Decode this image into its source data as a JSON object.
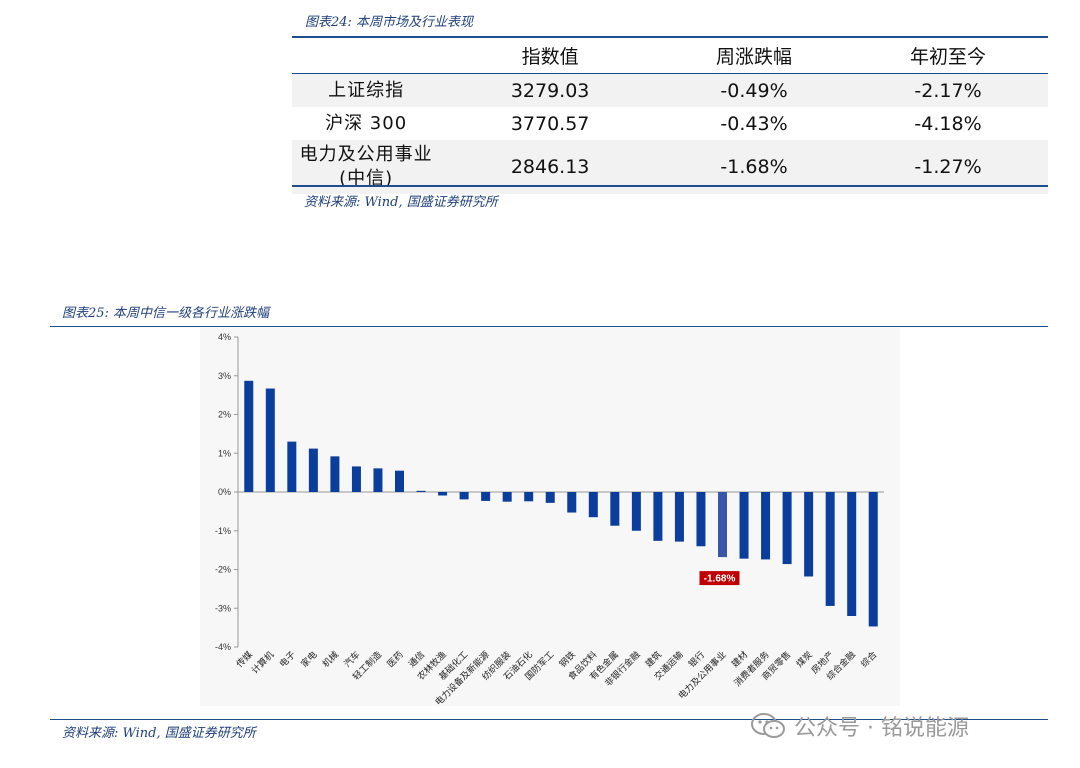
{
  "table24": {
    "caption": "图表24: 本周市场及行业表现",
    "headers": [
      "",
      "指数值",
      "周涨跌幅",
      "年初至今"
    ],
    "rows": [
      {
        "name_line1": "上证综指",
        "name_line2": "",
        "value": "3279.03",
        "week": "-0.49%",
        "ytd": "-2.17%"
      },
      {
        "name_line1": "沪深 300",
        "name_line2": "",
        "value": "3770.57",
        "week": "-0.43%",
        "ytd": "-4.18%"
      },
      {
        "name_line1": "电力及公用事业",
        "name_line2": "(中信)",
        "value": "2846.13",
        "week": "-1.68%",
        "ytd": "-1.27%"
      }
    ],
    "source": "资料来源: Wind, 国盛证券研究所"
  },
  "chart25": {
    "caption": "图表25: 本周中信一级各行业涨跌幅",
    "source": "资料来源: Wind, 国盛证券研究所"
  },
  "chart_data": {
    "type": "bar",
    "title": "",
    "xlabel": "",
    "ylabel": "",
    "ylim": [
      -4,
      4
    ],
    "yticks": [
      "4%",
      "3%",
      "2%",
      "1%",
      "0%",
      "-1%",
      "-2%",
      "-3%",
      "-4%"
    ],
    "categories": [
      "传媒",
      "计算机",
      "电子",
      "家电",
      "机械",
      "汽车",
      "轻工制造",
      "医药",
      "通信",
      "农林牧渔",
      "基础化工",
      "电力设备及新能源",
      "纺织服装",
      "石油石化",
      "国防军工",
      "钢铁",
      "食品饮料",
      "有色金属",
      "非银行金融",
      "建筑",
      "交通运输",
      "银行",
      "电力及公用事业",
      "建材",
      "消费者服务",
      "商贸零售",
      "煤炭",
      "房地产",
      "综合金融",
      "综合"
    ],
    "values": [
      2.87,
      2.67,
      1.3,
      1.12,
      0.92,
      0.66,
      0.61,
      0.55,
      0.03,
      -0.09,
      -0.19,
      -0.23,
      -0.25,
      -0.24,
      -0.28,
      -0.53,
      -0.65,
      -0.87,
      -1.0,
      -1.26,
      -1.28,
      -1.4,
      -1.68,
      -1.72,
      -1.74,
      -1.86,
      -2.18,
      -2.94,
      -3.2,
      -3.47
    ],
    "highlight_index": 22,
    "highlight_label": "-1.68%",
    "bar_color": "#0a3d9c",
    "highlight_color": "#3a56a8",
    "label_bg_color": "#c00000",
    "grid": false
  },
  "watermark": {
    "text": "公众号 · 铭说能源"
  }
}
